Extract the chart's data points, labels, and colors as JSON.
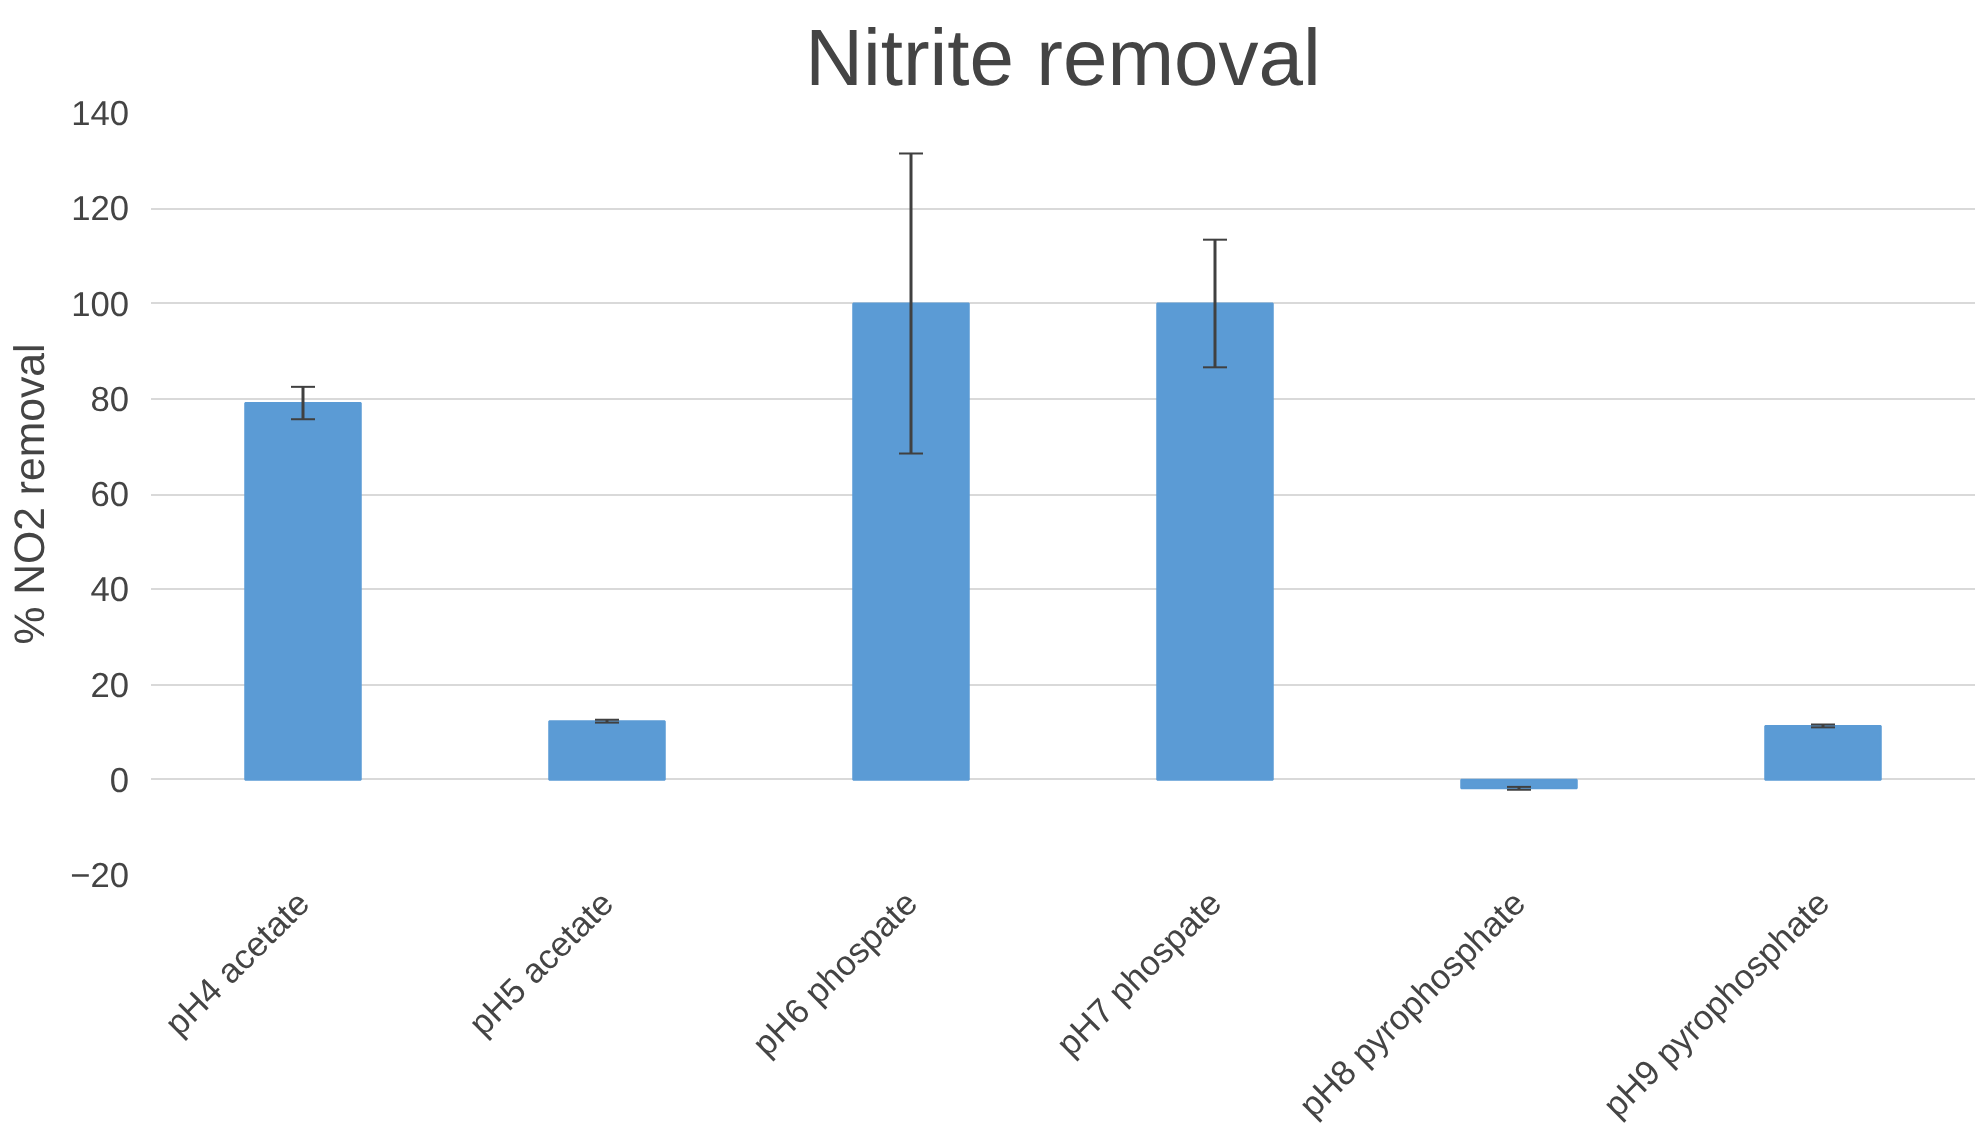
{
  "chart_data": {
    "type": "bar",
    "title": "Nitrite removal",
    "ylabel": "% NO2 removal",
    "categories": [
      "pH4 acetate",
      "pH5 acetate",
      "pH6 phospate",
      "pH7 phospate",
      "pH8 pyrophosphate",
      "pH9 pyrophosphate"
    ],
    "values": [
      79.1,
      12.3,
      100,
      100,
      -1.8,
      11.3
    ],
    "errors": [
      3.4,
      0.3,
      31.5,
      13.4,
      0.3,
      0.3
    ],
    "color": "#5b9bd5",
    "ylim": [
      -20,
      140
    ],
    "yticks": [
      -20,
      0,
      20,
      40,
      60,
      80,
      100,
      120,
      140
    ],
    "grid": "y"
  }
}
